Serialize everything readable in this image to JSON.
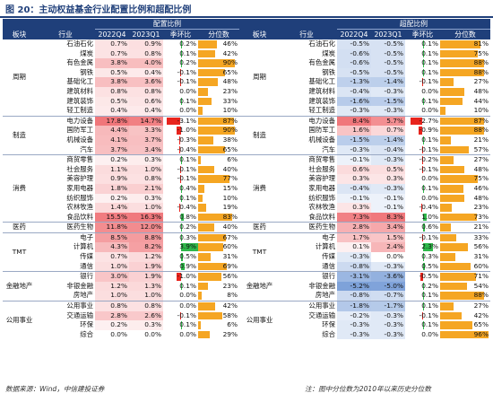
{
  "title": "图 20：主动权益基金行业配置比例和超配比例",
  "headers": {
    "group_left": "配置比例",
    "group_right": "超配比例",
    "sector": "板块",
    "industry": "行业",
    "q1": "2022Q4",
    "q2": "2023Q1",
    "chg": "季环比",
    "pct": "分位数"
  },
  "colors": {
    "header_bg": "#1f3f7a",
    "positive_heat": "#f0767a",
    "negative_heat": "#7a9fd8",
    "change_pos": "#2fb84a",
    "change_neg": "#e8241d",
    "percentile_bar": "#f5a623"
  },
  "groups": [
    {
      "name": "周期",
      "rows": [
        {
          "ind": "石油石化",
          "a1": "0.7%",
          "a2": "0.9%",
          "ac": "0.2%",
          "ap": "46%",
          "b1": "-0.5%",
          "b2": "-0.5%",
          "bc": "0.1%",
          "bp": "81%",
          "av1": 0.7,
          "av2": 0.9,
          "acv": 0.2,
          "apv": 46,
          "bv1": -0.5,
          "bv2": -0.5,
          "bcv": 0.1,
          "bpv": 81
        },
        {
          "ind": "煤炭",
          "a1": "0.7%",
          "a2": "0.8%",
          "ac": "0.1%",
          "ap": "42%",
          "b1": "-0.6%",
          "b2": "-0.5%",
          "bc": "0.1%",
          "bp": "75%",
          "av1": 0.7,
          "av2": 0.8,
          "acv": 0.1,
          "apv": 42,
          "bv1": -0.6,
          "bv2": -0.5,
          "bcv": 0.1,
          "bpv": 75
        },
        {
          "ind": "有色金属",
          "a1": "3.8%",
          "a2": "4.0%",
          "ac": "0.2%",
          "ap": "90%",
          "b1": "-0.6%",
          "b2": "-0.5%",
          "bc": "0.1%",
          "bp": "88%",
          "av1": 3.8,
          "av2": 4.0,
          "acv": 0.2,
          "apv": 90,
          "bv1": -0.6,
          "bv2": -0.5,
          "bcv": 0.1,
          "bpv": 88
        },
        {
          "ind": "钢铁",
          "a1": "0.5%",
          "a2": "0.4%",
          "ac": "-0.1%",
          "ap": "65%",
          "b1": "-0.5%",
          "b2": "-0.5%",
          "bc": "0.1%",
          "bp": "88%",
          "av1": 0.5,
          "av2": 0.4,
          "acv": -0.1,
          "apv": 65,
          "bv1": -0.5,
          "bv2": -0.5,
          "bcv": 0.1,
          "bpv": 88
        },
        {
          "ind": "基础化工",
          "a1": "3.8%",
          "a2": "3.6%",
          "ac": "-0.1%",
          "ap": "48%",
          "b1": "-1.3%",
          "b2": "-1.4%",
          "bc": "-0.1%",
          "bp": "27%",
          "av1": 3.8,
          "av2": 3.6,
          "acv": -0.1,
          "apv": 48,
          "bv1": -1.3,
          "bv2": -1.4,
          "bcv": -0.1,
          "bpv": 27
        },
        {
          "ind": "建筑材料",
          "a1": "0.8%",
          "a2": "0.8%",
          "ac": "0.0%",
          "ap": "23%",
          "b1": "-0.4%",
          "b2": "-0.3%",
          "bc": "0.0%",
          "bp": "48%",
          "av1": 0.8,
          "av2": 0.8,
          "acv": 0.0,
          "apv": 23,
          "bv1": -0.4,
          "bv2": -0.3,
          "bcv": 0.0,
          "bpv": 48
        },
        {
          "ind": "建筑装饰",
          "a1": "0.5%",
          "a2": "0.6%",
          "ac": "0.1%",
          "ap": "33%",
          "b1": "-1.6%",
          "b2": "-1.5%",
          "bc": "0.1%",
          "bp": "44%",
          "av1": 0.5,
          "av2": 0.6,
          "acv": 0.1,
          "apv": 33,
          "bv1": -1.6,
          "bv2": -1.5,
          "bcv": 0.1,
          "bpv": 44
        },
        {
          "ind": "轻工制造",
          "a1": "0.4%",
          "a2": "0.4%",
          "ac": "0.0%",
          "ap": "10%",
          "b1": "-0.3%",
          "b2": "-0.3%",
          "bc": "0.0%",
          "bp": "10%",
          "av1": 0.4,
          "av2": 0.4,
          "acv": 0.0,
          "apv": 10,
          "bv1": -0.3,
          "bv2": -0.3,
          "bcv": 0.0,
          "bpv": 10
        }
      ]
    },
    {
      "name": "制造",
      "rows": [
        {
          "ind": "电力设备",
          "a1": "17.8%",
          "a2": "14.7%",
          "ac": "-3.1%",
          "ap": "87%",
          "b1": "8.4%",
          "b2": "5.7%",
          "bc": "-2.7%",
          "bp": "87%",
          "av1": 17.8,
          "av2": 14.7,
          "acv": -3.1,
          "apv": 87,
          "bv1": 8.4,
          "bv2": 5.7,
          "bcv": -2.7,
          "bpv": 87
        },
        {
          "ind": "国防军工",
          "a1": "4.4%",
          "a2": "3.3%",
          "ac": "-1.0%",
          "ap": "90%",
          "b1": "1.6%",
          "b2": "0.7%",
          "bc": "-0.9%",
          "bp": "88%",
          "av1": 4.4,
          "av2": 3.3,
          "acv": -1.0,
          "apv": 90,
          "bv1": 1.6,
          "bv2": 0.7,
          "bcv": -0.9,
          "bpv": 88
        },
        {
          "ind": "机械设备",
          "a1": "4.1%",
          "a2": "3.7%",
          "ac": "-0.3%",
          "ap": "38%",
          "b1": "-1.5%",
          "b2": "-1.4%",
          "bc": "0.1%",
          "bp": "21%",
          "av1": 4.1,
          "av2": 3.7,
          "acv": -0.3,
          "apv": 38,
          "bv1": -1.5,
          "bv2": -1.4,
          "bcv": 0.1,
          "bpv": 21
        },
        {
          "ind": "汽车",
          "a1": "3.7%",
          "a2": "3.4%",
          "ac": "-0.4%",
          "ap": "65%",
          "b1": "-0.3%",
          "b2": "-0.4%",
          "bc": "-0.1%",
          "bp": "57%",
          "av1": 3.7,
          "av2": 3.4,
          "acv": -0.4,
          "apv": 65,
          "bv1": -0.3,
          "bv2": -0.4,
          "bcv": -0.1,
          "bpv": 57
        }
      ]
    },
    {
      "name": "消费",
      "rows": [
        {
          "ind": "商贸零售",
          "a1": "0.2%",
          "a2": "0.3%",
          "ac": "0.1%",
          "ap": "6%",
          "b1": "-0.1%",
          "b2": "-0.3%",
          "bc": "-0.2%",
          "bp": "27%",
          "av1": 0.2,
          "av2": 0.3,
          "acv": 0.1,
          "apv": 6,
          "bv1": -0.1,
          "bv2": -0.3,
          "bcv": -0.2,
          "bpv": 27
        },
        {
          "ind": "社会服务",
          "a1": "1.1%",
          "a2": "1.0%",
          "ac": "-0.1%",
          "ap": "40%",
          "b1": "0.6%",
          "b2": "0.5%",
          "bc": "-0.1%",
          "bp": "48%",
          "av1": 1.1,
          "av2": 1.0,
          "acv": -0.1,
          "apv": 40,
          "bv1": 0.6,
          "bv2": 0.5,
          "bcv": -0.1,
          "bpv": 48
        },
        {
          "ind": "美容护理",
          "a1": "0.9%",
          "a2": "0.8%",
          "ac": "-0.1%",
          "ap": "77%",
          "b1": "0.3%",
          "b2": "0.3%",
          "bc": "0.0%",
          "bp": "75%",
          "av1": 0.9,
          "av2": 0.8,
          "acv": -0.1,
          "apv": 77,
          "bv1": 0.3,
          "bv2": 0.3,
          "bcv": 0.0,
          "bpv": 75
        },
        {
          "ind": "家用电器",
          "a1": "1.8%",
          "a2": "2.1%",
          "ac": "0.4%",
          "ap": "15%",
          "b1": "-0.4%",
          "b2": "-0.3%",
          "bc": "0.1%",
          "bp": "46%",
          "av1": 1.8,
          "av2": 2.1,
          "acv": 0.4,
          "apv": 15,
          "bv1": -0.4,
          "bv2": -0.3,
          "bcv": 0.1,
          "bpv": 46
        },
        {
          "ind": "纺织服饰",
          "a1": "0.2%",
          "a2": "0.3%",
          "ac": "0.1%",
          "ap": "10%",
          "b1": "-0.1%",
          "b2": "-0.1%",
          "bc": "0.0%",
          "bp": "48%",
          "av1": 0.2,
          "av2": 0.3,
          "acv": 0.1,
          "apv": 10,
          "bv1": -0.1,
          "bv2": -0.1,
          "bcv": 0.0,
          "bpv": 48
        },
        {
          "ind": "农林牧渔",
          "a1": "1.4%",
          "a2": "1.0%",
          "ac": "-0.4%",
          "ap": "19%",
          "b1": "0.3%",
          "b2": "-0.1%",
          "bc": "-0.4%",
          "bp": "23%",
          "av1": 1.4,
          "av2": 1.0,
          "acv": -0.4,
          "apv": 19,
          "bv1": 0.3,
          "bv2": -0.1,
          "bcv": -0.4,
          "bpv": 23
        },
        {
          "ind": "食品饮料",
          "a1": "15.5%",
          "a2": "16.3%",
          "ac": "0.8%",
          "ap": "83%",
          "b1": "7.3%",
          "b2": "8.3%",
          "bc": "1.0%",
          "bp": "73%",
          "av1": 15.5,
          "av2": 16.3,
          "acv": 0.8,
          "apv": 83,
          "bv1": 7.3,
          "bv2": 8.3,
          "bcv": 1.0,
          "bpv": 73
        }
      ]
    },
    {
      "name": "医药",
      "rows": [
        {
          "ind": "医药生物",
          "a1": "11.8%",
          "a2": "12.0%",
          "ac": "0.2%",
          "ap": "40%",
          "b1": "2.8%",
          "b2": "3.4%",
          "bc": "0.6%",
          "bp": "21%",
          "av1": 11.8,
          "av2": 12.0,
          "acv": 0.2,
          "apv": 40,
          "bv1": 2.8,
          "bv2": 3.4,
          "bcv": 0.6,
          "bpv": 21
        }
      ]
    },
    {
      "name": "TMT",
      "rows": [
        {
          "ind": "电子",
          "a1": "8.5%",
          "a2": "8.8%",
          "ac": "0.3%",
          "ap": "67%",
          "b1": "1.7%",
          "b2": "1.5%",
          "bc": "-0.1%",
          "bp": "33%",
          "av1": 8.5,
          "av2": 8.8,
          "acv": 0.3,
          "apv": 67,
          "bv1": 1.7,
          "bv2": 1.5,
          "bcv": -0.1,
          "bpv": 33
        },
        {
          "ind": "计算机",
          "a1": "4.3%",
          "a2": "8.2%",
          "ac": "3.9%",
          "ap": "60%",
          "b1": "0.1%",
          "b2": "2.4%",
          "bc": "2.3%",
          "bp": "56%",
          "av1": 4.3,
          "av2": 8.2,
          "acv": 3.9,
          "apv": 60,
          "bv1": 0.1,
          "bv2": 2.4,
          "bcv": 2.3,
          "bpv": 56
        },
        {
          "ind": "传媒",
          "a1": "0.7%",
          "a2": "1.2%",
          "ac": "0.5%",
          "ap": "31%",
          "b1": "-0.3%",
          "b2": "0.0%",
          "bc": "0.3%",
          "bp": "31%",
          "av1": 0.7,
          "av2": 1.2,
          "acv": 0.5,
          "apv": 31,
          "bv1": -0.3,
          "bv2": 0.0,
          "bcv": 0.3,
          "bpv": 31
        },
        {
          "ind": "通信",
          "a1": "1.0%",
          "a2": "1.9%",
          "ac": "0.9%",
          "ap": "69%",
          "b1": "-0.8%",
          "b2": "-0.3%",
          "bc": "0.5%",
          "bp": "60%",
          "av1": 1.0,
          "av2": 1.9,
          "acv": 0.9,
          "apv": 69,
          "bv1": -0.8,
          "bv2": -0.3,
          "bcv": 0.5,
          "bpv": 60
        }
      ]
    },
    {
      "name": "金融地产",
      "rows": [
        {
          "ind": "银行",
          "a1": "3.0%",
          "a2": "1.9%",
          "ac": "-1.0%",
          "ap": "56%",
          "b1": "-3.1%",
          "b2": "-3.6%",
          "bc": "-0.5%",
          "bp": "71%",
          "av1": 3.0,
          "av2": 1.9,
          "acv": -1.0,
          "apv": 56,
          "bv1": -3.1,
          "bv2": -3.6,
          "bcv": -0.5,
          "bpv": 71
        },
        {
          "ind": "非银金融",
          "a1": "1.2%",
          "a2": "1.3%",
          "ac": "0.1%",
          "ap": "23%",
          "b1": "-5.2%",
          "b2": "-5.0%",
          "bc": "0.2%",
          "bp": "54%",
          "av1": 1.2,
          "av2": 1.3,
          "acv": 0.1,
          "apv": 23,
          "bv1": -5.2,
          "bv2": -5.0,
          "bcv": 0.2,
          "bpv": 54
        },
        {
          "ind": "房地产",
          "a1": "1.0%",
          "a2": "1.0%",
          "ac": "0.0%",
          "ap": "8%",
          "b1": "-0.8%",
          "b2": "-0.7%",
          "bc": "0.1%",
          "bp": "88%",
          "av1": 1.0,
          "av2": 1.0,
          "acv": 0.0,
          "apv": 8,
          "bv1": -0.8,
          "bv2": -0.7,
          "bcv": 0.1,
          "bpv": 88
        }
      ]
    },
    {
      "name": "公用事业",
      "rows": [
        {
          "ind": "公用事业",
          "a1": "0.8%",
          "a2": "0.8%",
          "ac": "0.0%",
          "ap": "42%",
          "b1": "-1.8%",
          "b2": "-1.7%",
          "bc": "0.1%",
          "bp": "27%",
          "av1": 0.8,
          "av2": 0.8,
          "acv": 0.0,
          "apv": 42,
          "bv1": -1.8,
          "bv2": -1.7,
          "bcv": 0.1,
          "bpv": 27
        },
        {
          "ind": "交通运输",
          "a1": "2.8%",
          "a2": "2.6%",
          "ac": "-0.1%",
          "ap": "58%",
          "b1": "-0.2%",
          "b2": "-0.3%",
          "bc": "-0.1%",
          "bp": "42%",
          "av1": 2.8,
          "av2": 2.6,
          "acv": -0.1,
          "apv": 58,
          "bv1": -0.2,
          "bv2": -0.3,
          "bcv": -0.1,
          "bpv": 42
        },
        {
          "ind": "环保",
          "a1": "0.2%",
          "a2": "0.3%",
          "ac": "0.1%",
          "ap": "6%",
          "b1": "-0.3%",
          "b2": "-0.3%",
          "bc": "0.1%",
          "bp": "65%",
          "av1": 0.2,
          "av2": 0.3,
          "acv": 0.1,
          "apv": 6,
          "bv1": -0.3,
          "bv2": -0.3,
          "bcv": 0.1,
          "bpv": 65
        },
        {
          "ind": "综合",
          "a1": "0.0%",
          "a2": "0.0%",
          "ac": "0.0%",
          "ap": "29%",
          "b1": "-0.3%",
          "b2": "-0.3%",
          "bc": "0.0%",
          "bp": "96%",
          "av1": 0.0,
          "av2": 0.0,
          "acv": 0.0,
          "apv": 29,
          "bv1": -0.3,
          "bv2": -0.3,
          "bcv": 0.0,
          "bpv": 96
        }
      ]
    }
  ],
  "footer": {
    "source": "数据来源：Wind，中信建投证券",
    "note": "注：图中分位数为2010年以来历史分位数"
  }
}
